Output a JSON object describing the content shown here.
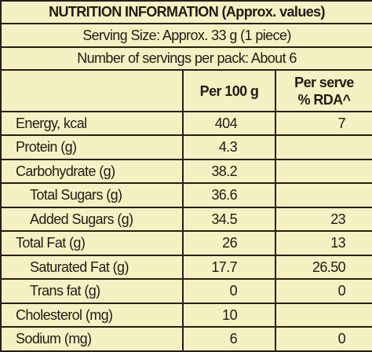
{
  "title": "NUTRITION INFORMATION (Approx. values)",
  "serving_size": "Serving Size: Approx. 33 g (1 piece)",
  "servings_per_pack": "Number of servings per pack: About 6",
  "header": {
    "per_100g": "Per 100 g",
    "per_serve": [
      "Per serve",
      "% RDA^"
    ]
  },
  "rows": [
    [
      "Energy, kcal",
      "404",
      "7"
    ],
    [
      "Protein (g)",
      "4.3",
      null
    ],
    [
      "Carbohydrate (g)",
      "38.2",
      null
    ],
    [
      "Total Sugars (g)",
      "36.6",
      null
    ],
    [
      "Added Sugars (g)",
      "34.5",
      "23"
    ],
    [
      "Total Fat (g)",
      "26",
      "13"
    ],
    [
      "Saturated Fat (g)",
      "17.7",
      "26.50"
    ],
    [
      "Trans fat (g)",
      "0",
      "0"
    ],
    [
      "Cholesterol (mg)",
      "10",
      null
    ],
    [
      "Sodium (mg)",
      "6",
      "0"
    ]
  ]
}
